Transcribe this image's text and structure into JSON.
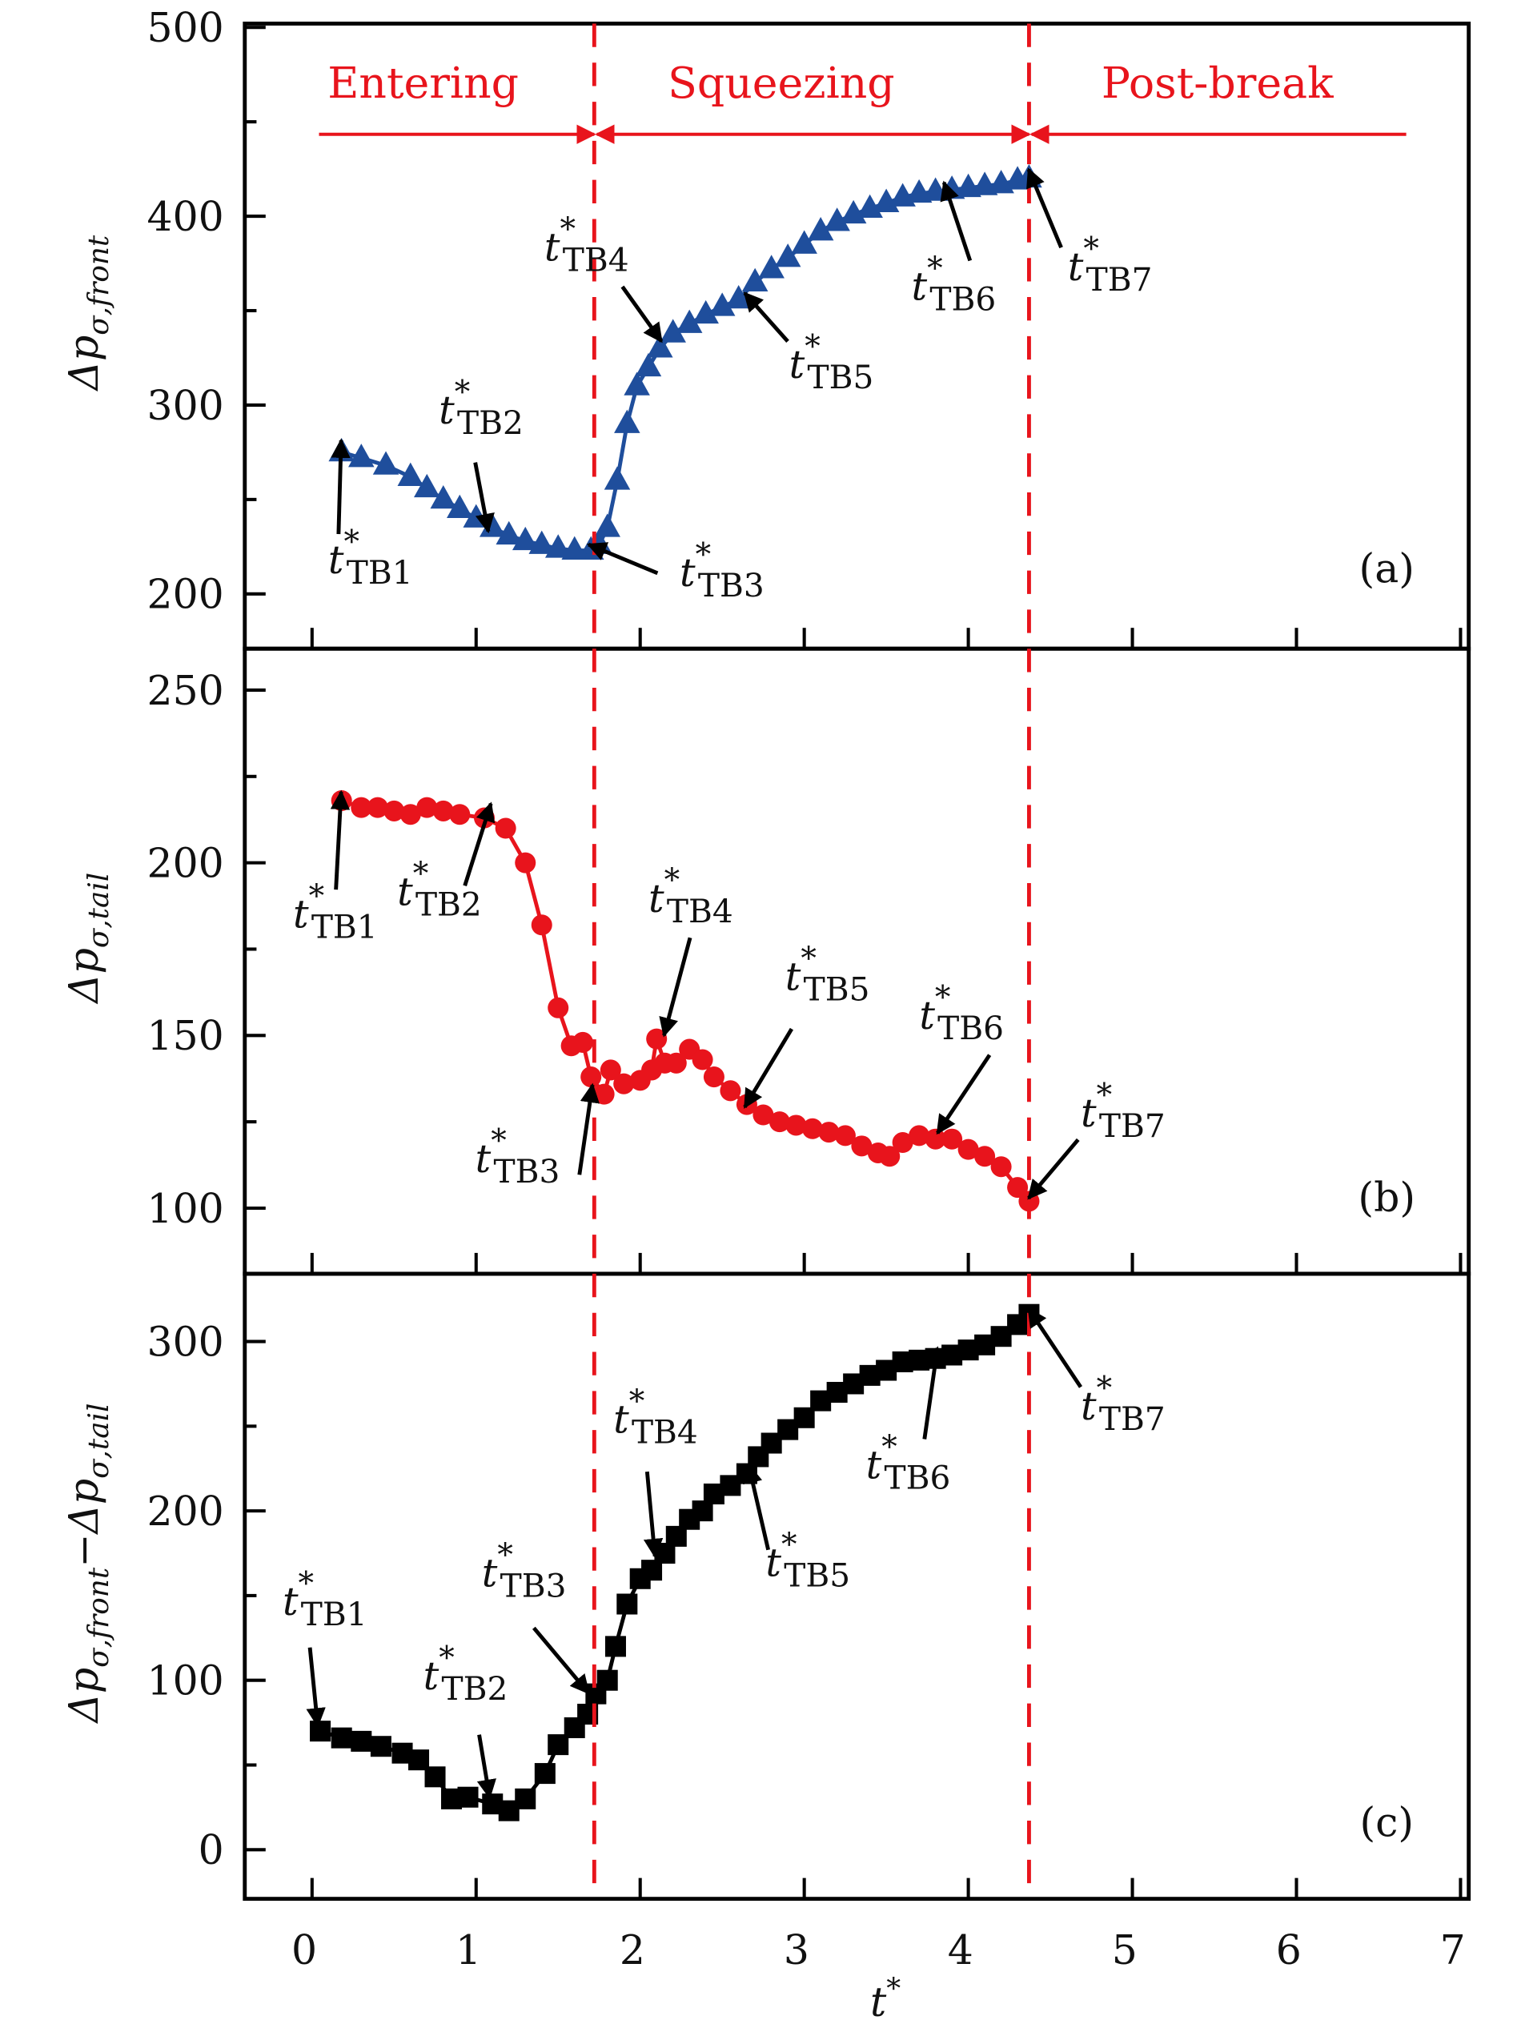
{
  "chart_data": [
    {
      "type": "line",
      "panel_label": "(a)",
      "ylabel": "Δp_σ,front",
      "ylabel_parts": {
        "delta": "Δp",
        "sub": "σ,front"
      },
      "ylim": [
        171,
        502
      ],
      "yticks": [
        200,
        300,
        400,
        500
      ],
      "color": "#1f4e9c",
      "marker": "triangle",
      "x": [
        0.18,
        0.3,
        0.45,
        0.6,
        0.7,
        0.8,
        0.9,
        1.0,
        1.1,
        1.2,
        1.3,
        1.4,
        1.5,
        1.6,
        1.7,
        1.75,
        1.8,
        1.86,
        1.92,
        1.98,
        2.05,
        2.12,
        2.2,
        2.3,
        2.4,
        2.5,
        2.6,
        2.7,
        2.8,
        2.9,
        3.0,
        3.1,
        3.2,
        3.3,
        3.4,
        3.5,
        3.6,
        3.7,
        3.8,
        3.9,
        4.0,
        4.1,
        4.2,
        4.3,
        4.37
      ],
      "y": [
        275,
        272,
        268,
        262,
        256,
        250,
        245,
        240,
        235,
        231,
        228,
        226,
        224,
        223,
        223,
        226,
        235,
        260,
        290,
        310,
        320,
        330,
        338,
        343,
        348,
        352,
        356,
        365,
        372,
        378,
        385,
        392,
        397,
        401,
        404,
        407,
        410,
        412,
        413,
        414,
        415,
        416,
        417,
        419,
        420
      ],
      "annotations": [
        "TB1",
        "TB2",
        "TB3",
        "TB4",
        "TB5",
        "TB6",
        "TB7"
      ],
      "phases": [
        "Entering",
        "Squeezing",
        "Post-break"
      ]
    },
    {
      "type": "line",
      "panel_label": "(b)",
      "ylabel": "Δp_σ,tail",
      "ylabel_parts": {
        "delta": "Δp",
        "sub": "σ,tail"
      },
      "ylim": [
        81,
        262
      ],
      "yticks": [
        100,
        150,
        200,
        250
      ],
      "color": "#e8141c",
      "marker": "circle",
      "x": [
        0.18,
        0.3,
        0.4,
        0.5,
        0.6,
        0.7,
        0.8,
        0.9,
        1.05,
        1.18,
        1.3,
        1.4,
        1.5,
        1.58,
        1.65,
        1.7,
        1.78,
        1.82,
        1.9,
        2.0,
        2.07,
        2.1,
        2.15,
        2.22,
        2.3,
        2.38,
        2.45,
        2.55,
        2.65,
        2.75,
        2.85,
        2.95,
        3.05,
        3.15,
        3.25,
        3.35,
        3.45,
        3.52,
        3.6,
        3.7,
        3.8,
        3.9,
        4.0,
        4.1,
        4.2,
        4.3,
        4.37
      ],
      "y": [
        218,
        216,
        216,
        215,
        214,
        216,
        215,
        214,
        213,
        210,
        200,
        182,
        158,
        147,
        148,
        138,
        133,
        140,
        136,
        137,
        140,
        149,
        142,
        142,
        146,
        143,
        138,
        134,
        130,
        127,
        125,
        124,
        123,
        122,
        121,
        118,
        116,
        115,
        119,
        121,
        120,
        120,
        117,
        115,
        112,
        106,
        102
      ],
      "annotations": [
        "TB1",
        "TB2",
        "TB3",
        "TB4",
        "TB5",
        "TB6",
        "TB7"
      ]
    },
    {
      "type": "line",
      "panel_label": "(c)",
      "ylabel": "Δp_σ,front − Δp_σ,tail",
      "ylabel_parts": {
        "delta": "Δp",
        "sub": "σ,front",
        "minus": "−",
        "delta2": "Δp",
        "sub2": "σ,tail"
      },
      "ylim": [
        -29,
        340
      ],
      "yticks": [
        0,
        100,
        200,
        300
      ],
      "color": "#000000",
      "marker": "square",
      "x": [
        0.05,
        0.18,
        0.3,
        0.42,
        0.55,
        0.65,
        0.75,
        0.85,
        0.95,
        1.1,
        1.2,
        1.3,
        1.42,
        1.5,
        1.6,
        1.68,
        1.73,
        1.8,
        1.85,
        1.92,
        2.0,
        2.07,
        2.15,
        2.22,
        2.3,
        2.38,
        2.45,
        2.55,
        2.65,
        2.72,
        2.8,
        2.9,
        3.0,
        3.1,
        3.2,
        3.3,
        3.4,
        3.5,
        3.6,
        3.7,
        3.8,
        3.9,
        4.0,
        4.1,
        4.2,
        4.3,
        4.37
      ],
      "y": [
        70,
        66,
        64,
        61,
        57,
        53,
        43,
        30,
        31,
        27,
        23,
        30,
        45,
        62,
        72,
        80,
        92,
        100,
        120,
        145,
        160,
        165,
        175,
        185,
        195,
        200,
        210,
        215,
        222,
        232,
        240,
        248,
        255,
        265,
        270,
        275,
        280,
        283,
        288,
        289,
        290,
        292,
        295,
        298,
        303,
        310,
        316
      ],
      "annotations": [
        "TB1",
        "TB2",
        "TB3",
        "TB4",
        "TB5",
        "TB6",
        "TB7"
      ]
    }
  ],
  "shared": {
    "xlabel": "t",
    "xlabel_sup": "*",
    "xlim": [
      -0.41,
      7.05
    ],
    "xticks": [
      0,
      1,
      2,
      3,
      4,
      5,
      6,
      7
    ],
    "annotation_main": "t",
    "annotation_sup": "*",
    "phase_boundaries": [
      1.72,
      4.37
    ],
    "boundary_color": "#e8141c"
  }
}
